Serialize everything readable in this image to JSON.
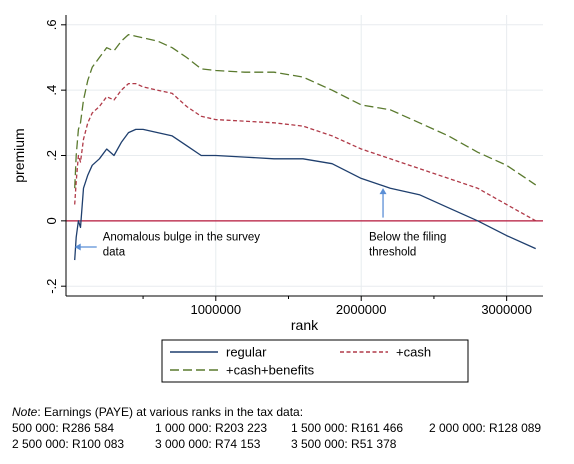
{
  "chart_data": {
    "type": "line",
    "xlabel": "rank",
    "ylabel": "premium",
    "xlim": [
      -30000,
      3250000
    ],
    "ylim": [
      -0.23,
      0.63
    ],
    "x_ticks": [
      1000000,
      2000000,
      3000000
    ],
    "x_tick_labels": [
      "1000000",
      "2000000",
      "3000000"
    ],
    "y_ticks": [
      -0.2,
      0,
      0.2,
      0.4,
      0.6
    ],
    "y_tick_labels": [
      "-.2",
      "0",
      ".2",
      ".4",
      ".6"
    ],
    "grid": true,
    "hline": {
      "y": 0,
      "color": "#b5163a"
    },
    "legend_placement": "bottom",
    "series": [
      {
        "name": "regular",
        "color": "#1f3f6e",
        "dash": "solid",
        "points": [
          [
            30000,
            -0.12
          ],
          [
            40000,
            -0.05
          ],
          [
            55000,
            0.0
          ],
          [
            70000,
            -0.02
          ],
          [
            90000,
            0.1
          ],
          [
            120000,
            0.14
          ],
          [
            150000,
            0.17
          ],
          [
            200000,
            0.19
          ],
          [
            250000,
            0.22
          ],
          [
            300000,
            0.2
          ],
          [
            350000,
            0.24
          ],
          [
            400000,
            0.27
          ],
          [
            450000,
            0.28
          ],
          [
            500000,
            0.28
          ],
          [
            600000,
            0.27
          ],
          [
            700000,
            0.26
          ],
          [
            800000,
            0.23
          ],
          [
            900000,
            0.2
          ],
          [
            1000000,
            0.2
          ],
          [
            1200000,
            0.195
          ],
          [
            1400000,
            0.19
          ],
          [
            1600000,
            0.19
          ],
          [
            1800000,
            0.175
          ],
          [
            2000000,
            0.13
          ],
          [
            2200000,
            0.1
          ],
          [
            2400000,
            0.08
          ],
          [
            2600000,
            0.04
          ],
          [
            2800000,
            0.0
          ],
          [
            3000000,
            -0.045
          ],
          [
            3200000,
            -0.085
          ]
        ]
      },
      {
        "name": "+cash",
        "color": "#b03a48",
        "dash": "short-dash",
        "points": [
          [
            30000,
            0.05
          ],
          [
            40000,
            0.12
          ],
          [
            55000,
            0.2
          ],
          [
            70000,
            0.18
          ],
          [
            90000,
            0.25
          ],
          [
            120000,
            0.3
          ],
          [
            150000,
            0.33
          ],
          [
            200000,
            0.35
          ],
          [
            250000,
            0.38
          ],
          [
            300000,
            0.37
          ],
          [
            350000,
            0.4
          ],
          [
            400000,
            0.42
          ],
          [
            450000,
            0.42
          ],
          [
            500000,
            0.41
          ],
          [
            600000,
            0.4
          ],
          [
            700000,
            0.39
          ],
          [
            800000,
            0.35
          ],
          [
            900000,
            0.32
          ],
          [
            1000000,
            0.31
          ],
          [
            1200000,
            0.305
          ],
          [
            1400000,
            0.3
          ],
          [
            1600000,
            0.29
          ],
          [
            1800000,
            0.26
          ],
          [
            2000000,
            0.22
          ],
          [
            2200000,
            0.19
          ],
          [
            2400000,
            0.16
          ],
          [
            2600000,
            0.13
          ],
          [
            2800000,
            0.1
          ],
          [
            3000000,
            0.05
          ],
          [
            3200000,
            0.0
          ]
        ]
      },
      {
        "name": "+cash+benefits",
        "color": "#5a7a2e",
        "dash": "long-dash",
        "points": [
          [
            30000,
            0.1
          ],
          [
            40000,
            0.2
          ],
          [
            55000,
            0.28
          ],
          [
            70000,
            0.3
          ],
          [
            90000,
            0.37
          ],
          [
            120000,
            0.43
          ],
          [
            150000,
            0.47
          ],
          [
            200000,
            0.5
          ],
          [
            250000,
            0.53
          ],
          [
            300000,
            0.52
          ],
          [
            350000,
            0.55
          ],
          [
            400000,
            0.57
          ],
          [
            450000,
            0.565
          ],
          [
            500000,
            0.56
          ],
          [
            600000,
            0.55
          ],
          [
            700000,
            0.53
          ],
          [
            800000,
            0.5
          ],
          [
            900000,
            0.465
          ],
          [
            1000000,
            0.46
          ],
          [
            1200000,
            0.455
          ],
          [
            1400000,
            0.455
          ],
          [
            1600000,
            0.44
          ],
          [
            1800000,
            0.4
          ],
          [
            2000000,
            0.355
          ],
          [
            2200000,
            0.34
          ],
          [
            2400000,
            0.3
          ],
          [
            2600000,
            0.26
          ],
          [
            2800000,
            0.21
          ],
          [
            3000000,
            0.17
          ],
          [
            3200000,
            0.11
          ]
        ]
      }
    ],
    "annotations": [
      {
        "lines": [
          "Anomalous bulge in the survey",
          "data"
        ],
        "arrow_to": [
          30000,
          -0.08
        ]
      },
      {
        "lines": [
          "Below the filing",
          "threshold"
        ],
        "arrow_to": [
          2150000,
          0.1
        ]
      }
    ]
  },
  "note": {
    "label": "Note",
    "intro": ": Earnings (PAYE) at various ranks in the tax data:",
    "rows": [
      [
        "500 000: R286 584",
        "1 000 000: R203 223",
        "1 500 000: R161 466",
        "2 000 000: R128 089"
      ],
      [
        "2 500 000: R100 083",
        "3 000 000: R74 153",
        "3 500 000: R51 378"
      ]
    ]
  },
  "colors": {
    "zero_line": "#b5163a",
    "grid": "#e8ecef",
    "arrow": "#5b8fd6",
    "frame": "#000000"
  }
}
